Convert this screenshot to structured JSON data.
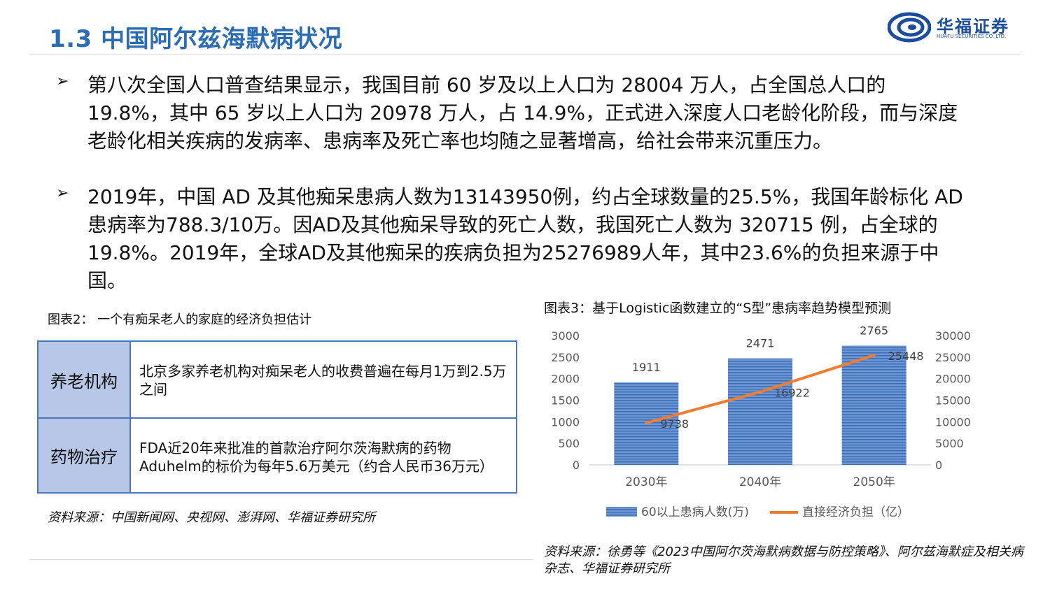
{
  "header": {
    "title": "1.3 中国阿尔兹海默病状况",
    "logo_cn": "华福证券",
    "logo_en": "HUAFU SECURITIES CO.,LTD."
  },
  "bullets": [
    "第八次全国人口普查结果显示，我国目前 60 岁及以上人口为 28004 万人，占全国总人口的 19.8%，其中 65 岁以上人口为 20978 万人，占 14.9%，正式进入深度人口老龄化阶段，而与深度老龄化相关疾病的发病率、患病率及死亡率也均随之显著增高，给社会带来沉重压力。",
    "2019年，中国 AD 及其他痴呆患病人数为13143950例，约占全球数量的25.5%，我国年龄标化 AD 患病率为788.3/10万。因AD及其他痴呆导致的死亡人数，我国死亡人数为 320715 例，占全球的 19.8%。2019年，全球AD及其他痴呆的疾病负担为25276989人年，其中23.6%的负担来源于中国。"
  ],
  "figure2": {
    "caption": "图表2：  一个有痴呆老人的家庭的经济负担估计",
    "rows": [
      {
        "header": "养老机构",
        "text": "北京多家养老机构对痴呆老人的收费普遍在每月1万到2.5万之间"
      },
      {
        "header": "药物治疗",
        "text": "FDA近20年来批准的首款治疗阿尔茨海默病的药物Aduhelm的标价为每年5.6万美元（约合人民币36万元）"
      }
    ],
    "source": "资料来源：中国新闻网、央视网、澎湃网、华福证券研究所"
  },
  "figure3": {
    "caption": "图表3：基于Logistic函数建立的“S型”患病率趋势模型预测",
    "source": "资料来源：徐勇等《2023中国阿尔茨海默病数据与防控策略》、阿尔兹海默症及相关病杂志、华福证券研究所"
  },
  "chart_data": {
    "type": "bar",
    "categories": [
      "2030年",
      "2040年",
      "2050年"
    ],
    "series": [
      {
        "name": "60以上患病人数(万)",
        "type": "bar",
        "axis": "left",
        "values": [
          1911,
          2471,
          2765
        ],
        "color": "#5B87CC"
      },
      {
        "name": "直接经济负担（亿）",
        "type": "line",
        "axis": "right",
        "values": [
          9738,
          16922,
          25448
        ],
        "color": "#ED7D31"
      }
    ],
    "ylim": [
      0,
      3000
    ],
    "yticks": [
      "0",
      "500",
      "1000",
      "1500",
      "2000",
      "2500",
      "3000"
    ],
    "y2lim": [
      0,
      30000
    ],
    "y2ticks": [
      "0",
      "5000",
      "10000",
      "15000",
      "20000",
      "25000",
      "30000"
    ],
    "legend_position": "bottom",
    "grid": false
  }
}
